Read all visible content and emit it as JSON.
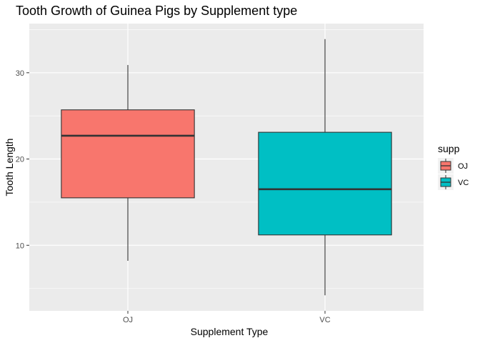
{
  "chart_data": {
    "type": "box",
    "title": "Tooth Growth of Guinea Pigs by Supplement type",
    "xlabel": "Supplement Type",
    "ylabel": "Tooth Length",
    "categories": [
      "OJ",
      "VC"
    ],
    "ylim": [
      2.4,
      35.7
    ],
    "yticks": [
      10,
      20,
      30
    ],
    "grid": true,
    "legend": {
      "title": "supp",
      "position": "right",
      "entries": [
        {
          "label": "OJ",
          "color": "#F8766D"
        },
        {
          "label": "VC",
          "color": "#00BFC4"
        }
      ]
    },
    "series": [
      {
        "category": "OJ",
        "min": 8.2,
        "q1": 15.5,
        "median": 22.7,
        "q3": 25.7,
        "max": 30.9,
        "color": "#F8766D"
      },
      {
        "category": "VC",
        "min": 4.2,
        "q1": 11.2,
        "median": 16.5,
        "q3": 23.1,
        "max": 33.9,
        "color": "#00BFC4"
      }
    ],
    "panel_background": "#EBEBEB",
    "gridline_color": "#FFFFFF",
    "box_outline_color": "#333333"
  }
}
